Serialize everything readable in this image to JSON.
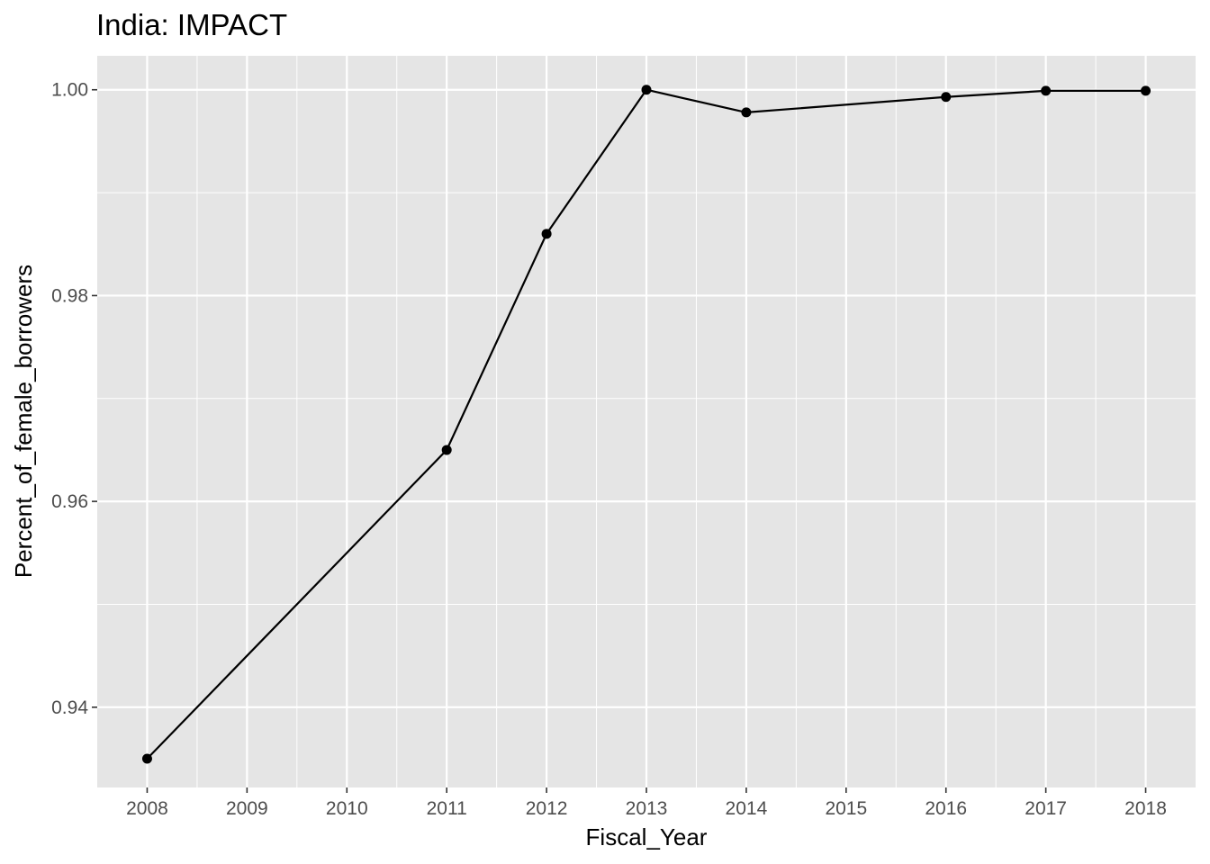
{
  "chart_data": {
    "type": "line",
    "title": "India:  IMPACT",
    "xlabel": "Fiscal_Year",
    "ylabel": "Percent_of_female_borrowers",
    "x": [
      2008,
      2011,
      2012,
      2013,
      2014,
      2016,
      2017,
      2018
    ],
    "series": [
      {
        "values": [
          0.935,
          0.965,
          0.986,
          1.0,
          0.9978,
          0.9993,
          0.9999,
          0.9999
        ]
      }
    ],
    "x_ticks": [
      "2008",
      "2009",
      "2010",
      "2011",
      "2012",
      "2013",
      "2014",
      "2015",
      "2016",
      "2017",
      "2018"
    ],
    "y_ticks": [
      "0.94",
      "0.96",
      "0.98",
      "1.00"
    ],
    "xlim": [
      2007.5,
      2018.5
    ],
    "ylim": [
      0.9322,
      1.0033
    ],
    "grid": true,
    "panel_background": "#e5e5e5",
    "grid_color": "#ffffff",
    "line_color": "#000000",
    "point_color": "#000000"
  }
}
